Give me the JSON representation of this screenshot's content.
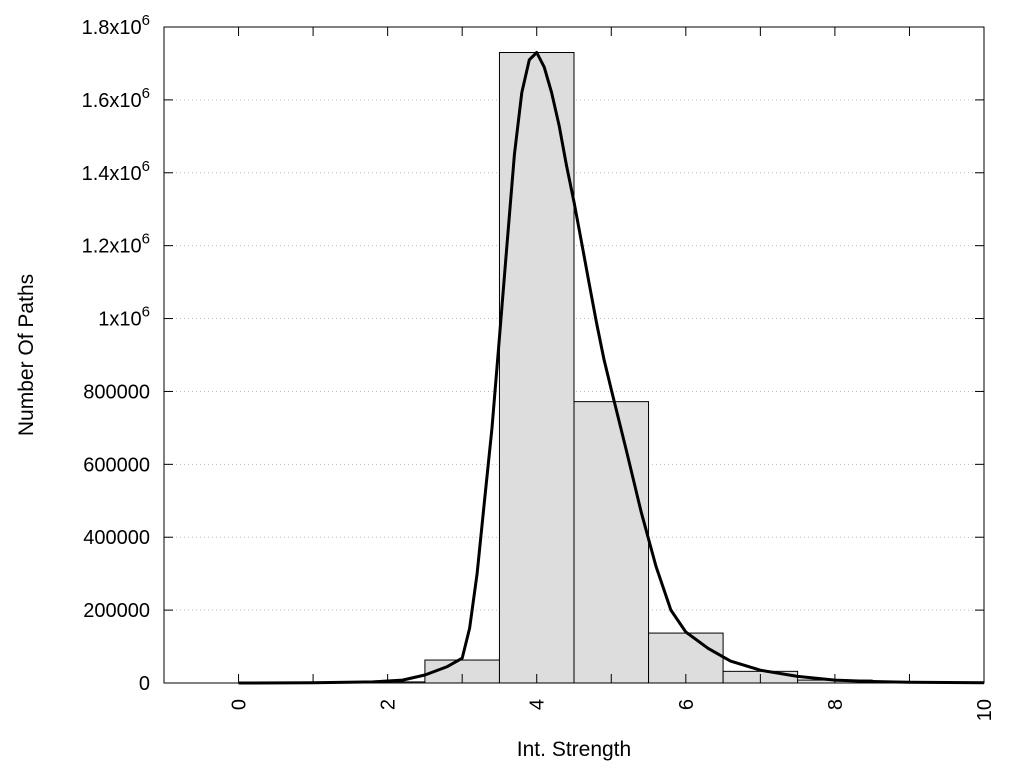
{
  "chart_data": {
    "type": "bar",
    "xlabel": "Int. Strength",
    "ylabel": "Number Of Paths",
    "xlim": [
      -1,
      10
    ],
    "ylim": [
      0,
      1800000
    ],
    "grid": "horizontal-dotted",
    "x_ticks": [
      {
        "value": 0,
        "label": "0"
      },
      {
        "value": 2,
        "label": "2"
      },
      {
        "value": 4,
        "label": "4"
      },
      {
        "value": 6,
        "label": "6"
      },
      {
        "value": 8,
        "label": "8"
      },
      {
        "value": 10,
        "label": "10"
      }
    ],
    "y_ticks": [
      {
        "value": 0,
        "base": "0",
        "exp": ""
      },
      {
        "value": 200000,
        "base": "200000",
        "exp": ""
      },
      {
        "value": 400000,
        "base": "400000",
        "exp": ""
      },
      {
        "value": 600000,
        "base": "600000",
        "exp": ""
      },
      {
        "value": 800000,
        "base": "800000",
        "exp": ""
      },
      {
        "value": 1000000,
        "base": "1x10",
        "exp": "6"
      },
      {
        "value": 1200000,
        "base": "1.2x10",
        "exp": "6"
      },
      {
        "value": 1400000,
        "base": "1.4x10",
        "exp": "6"
      },
      {
        "value": 1600000,
        "base": "1.6x10",
        "exp": "6"
      },
      {
        "value": 1800000,
        "base": "1.8x10",
        "exp": "6"
      }
    ],
    "bars": [
      {
        "x": 0,
        "value": 0
      },
      {
        "x": 1,
        "value": 1000
      },
      {
        "x": 2,
        "value": 3000
      },
      {
        "x": 3,
        "value": 63000
      },
      {
        "x": 4,
        "value": 1730000
      },
      {
        "x": 5,
        "value": 772000
      },
      {
        "x": 6,
        "value": 137000
      },
      {
        "x": 7,
        "value": 32000
      },
      {
        "x": 8,
        "value": 8000
      },
      {
        "x": 9,
        "value": 2000
      }
    ],
    "bar_width": 1,
    "bar_fill": "#dddddd",
    "curve": {
      "color": "#000000",
      "points": [
        [
          0,
          0
        ],
        [
          1,
          500
        ],
        [
          1.8,
          3000
        ],
        [
          2.2,
          8000
        ],
        [
          2.5,
          22000
        ],
        [
          2.8,
          45000
        ],
        [
          3,
          68000
        ],
        [
          3.1,
          150000
        ],
        [
          3.2,
          300000
        ],
        [
          3.3,
          500000
        ],
        [
          3.4,
          700000
        ],
        [
          3.5,
          950000
        ],
        [
          3.6,
          1200000
        ],
        [
          3.7,
          1450000
        ],
        [
          3.8,
          1620000
        ],
        [
          3.9,
          1710000
        ],
        [
          4.0,
          1730000
        ],
        [
          4.1,
          1690000
        ],
        [
          4.2,
          1620000
        ],
        [
          4.3,
          1530000
        ],
        [
          4.4,
          1420000
        ],
        [
          4.5,
          1320000
        ],
        [
          4.6,
          1210000
        ],
        [
          4.7,
          1100000
        ],
        [
          4.8,
          990000
        ],
        [
          4.9,
          890000
        ],
        [
          5.0,
          805000
        ],
        [
          5.2,
          640000
        ],
        [
          5.4,
          470000
        ],
        [
          5.6,
          320000
        ],
        [
          5.8,
          200000
        ],
        [
          6.0,
          140000
        ],
        [
          6.3,
          95000
        ],
        [
          6.6,
          60000
        ],
        [
          7.0,
          35000
        ],
        [
          7.5,
          18000
        ],
        [
          8.0,
          8000
        ],
        [
          8.5,
          4000
        ],
        [
          9.0,
          2000
        ],
        [
          10.0,
          500
        ]
      ]
    }
  }
}
